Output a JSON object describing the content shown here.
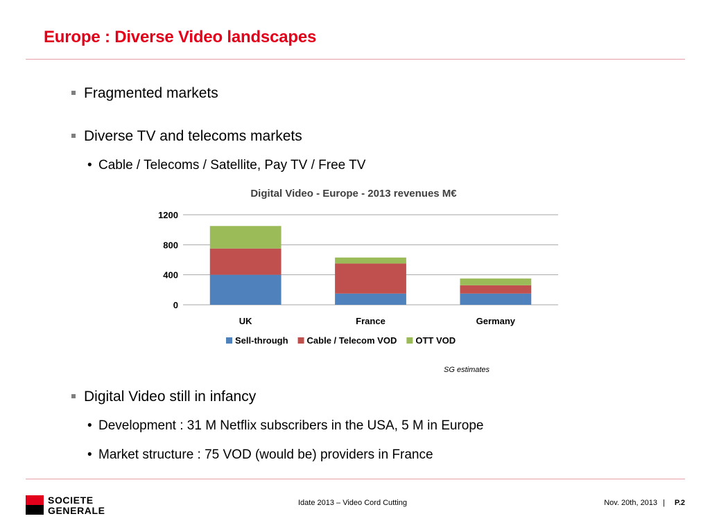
{
  "slide": {
    "title": "Europe : Diverse Video landscapes",
    "bullets": [
      {
        "text": "Fragmented markets",
        "subs": []
      },
      {
        "text": "Diverse TV and telecoms markets",
        "subs": [
          "Cable / Telecoms / Satellite,  Pay TV / Free TV"
        ]
      },
      {
        "text": "Digital Video still in infancy",
        "subs": [
          "Development : 31 M Netflix subscribers in the USA,   5 M in Europe",
          "Market structure : 75 VOD (would be) providers in France"
        ]
      }
    ],
    "source_note": "SG estimates"
  },
  "chart_data": {
    "type": "bar",
    "stacked": true,
    "title": "Digital Video - Europe  - 2013 revenues   M€",
    "categories": [
      "UK",
      "France",
      "Germany"
    ],
    "series": [
      {
        "name": "Sell-through",
        "values": [
          400,
          150,
          150
        ],
        "color": "#4f81bd"
      },
      {
        "name": "Cable / Telecom VOD",
        "values": [
          350,
          400,
          110
        ],
        "color": "#c0504d"
      },
      {
        "name": "OTT VOD",
        "values": [
          300,
          80,
          90
        ],
        "color": "#9bbb59"
      }
    ],
    "y_ticks": [
      0,
      400,
      800,
      1200
    ],
    "ylim": [
      0,
      1200
    ],
    "grid": true,
    "legend": "bottom"
  },
  "footer": {
    "logo_line1": "SOCIETE",
    "logo_line2": "GENERALE",
    "center": "Idate 2013 – Video Cord Cutting",
    "date": "Nov. 20th, 2013",
    "separator": "|",
    "page": "P.2"
  },
  "colors": {
    "accent": "#e2001a",
    "rule": "#e8a0a8"
  }
}
